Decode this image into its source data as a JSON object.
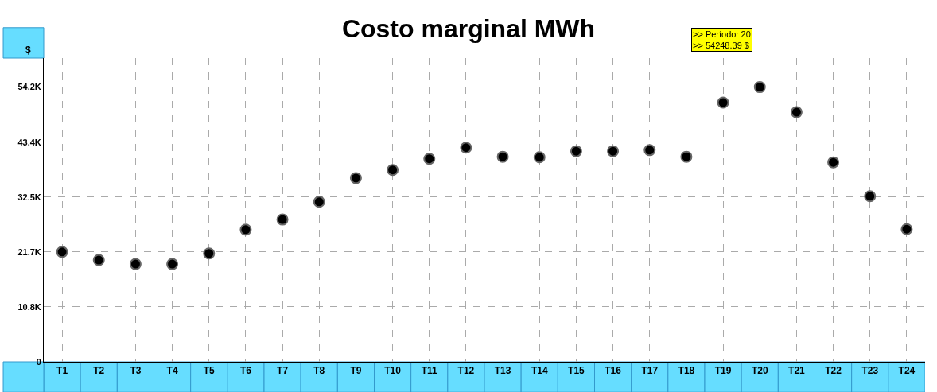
{
  "chart_data": {
    "type": "scatter",
    "title": "Costo marginal MWh",
    "ylabel": "$",
    "categories": [
      "T1",
      "T2",
      "T3",
      "T4",
      "T5",
      "T6",
      "T7",
      "T8",
      "T9",
      "T10",
      "T11",
      "T12",
      "T13",
      "T14",
      "T15",
      "T16",
      "T17",
      "T18",
      "T19",
      "T20",
      "T21",
      "T22",
      "T23",
      "T24"
    ],
    "series": [
      {
        "color": "#000000",
        "values": [
          21700,
          20100,
          19300,
          19300,
          21400,
          26100,
          28100,
          31600,
          36300,
          37900,
          40100,
          42300,
          40500,
          40400,
          41600,
          41600,
          41800,
          40500,
          51200,
          54248.39,
          49300,
          39400,
          32700,
          26200
        ]
      }
    ],
    "ylim": [
      0,
      60000
    ],
    "yticks": [
      {
        "value": 0,
        "label": "0"
      },
      {
        "value": 10849.7,
        "label": "10.8K"
      },
      {
        "value": 21699.4,
        "label": "21.7K"
      },
      {
        "value": 32549,
        "label": "32.5K"
      },
      {
        "value": 43398.7,
        "label": "43.4K"
      },
      {
        "value": 54248.4,
        "label": "54.2K"
      }
    ],
    "annotations": [
      ">> Período: 20\n>> 54248.39 $"
    ],
    "grid": true,
    "marker": "circle"
  }
}
